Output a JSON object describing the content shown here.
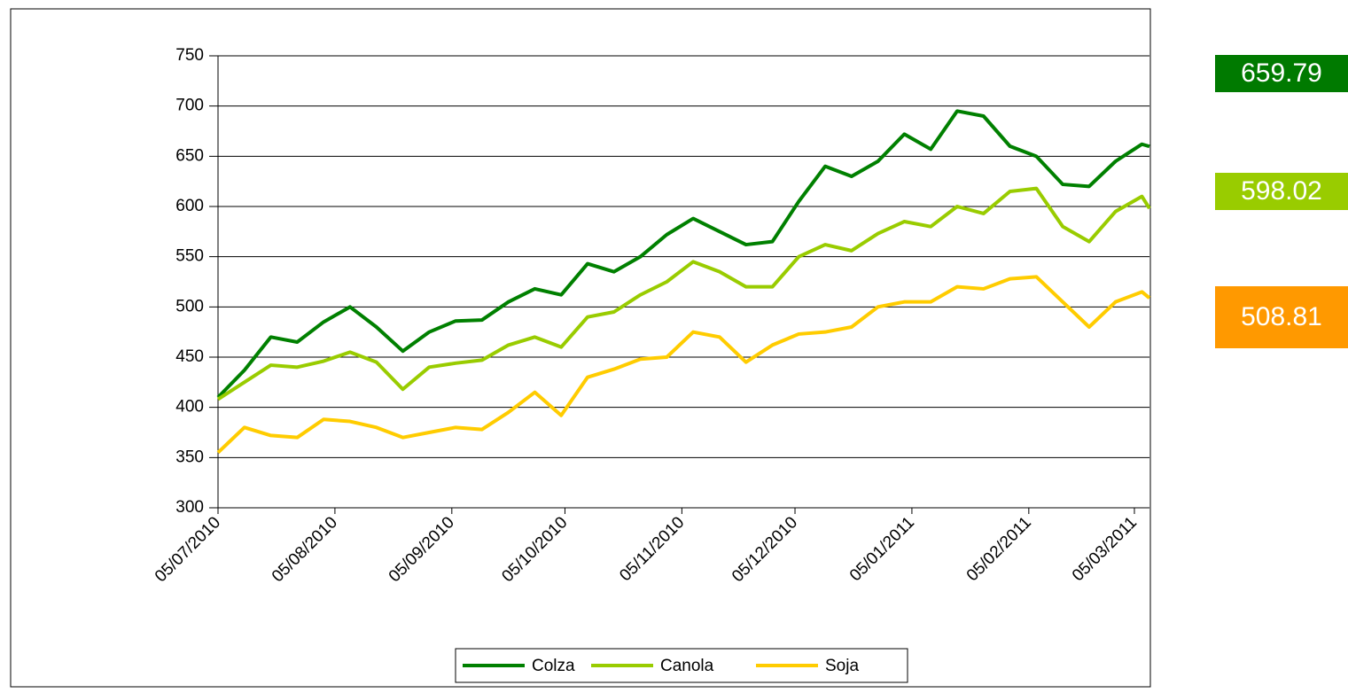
{
  "chart_data": {
    "type": "line",
    "x": [
      "05/07/2010",
      "12/07/2010",
      "19/07/2010",
      "26/07/2010",
      "02/08/2010",
      "09/08/2010",
      "16/08/2010",
      "23/08/2010",
      "30/08/2010",
      "06/09/2010",
      "13/09/2010",
      "20/09/2010",
      "27/09/2010",
      "04/10/2010",
      "11/10/2010",
      "18/10/2010",
      "25/10/2010",
      "01/11/2010",
      "08/11/2010",
      "15/11/2010",
      "22/11/2010",
      "29/11/2010",
      "06/12/2010",
      "13/12/2010",
      "20/12/2010",
      "27/12/2010",
      "03/01/2011",
      "10/01/2011",
      "17/01/2011",
      "24/01/2011",
      "31/01/2011",
      "07/02/2011",
      "14/02/2011",
      "21/02/2011",
      "28/02/2011",
      "07/03/2011",
      "09/03/2011"
    ],
    "series": [
      {
        "name": "Colza",
        "color": "#008000",
        "label_color": "#007a00",
        "values": [
          410,
          437,
          470,
          465,
          485,
          500,
          480,
          456,
          475,
          486,
          487,
          505,
          518,
          512,
          543,
          535,
          550,
          572,
          588,
          575,
          562,
          565,
          605,
          640,
          630,
          645,
          672,
          657,
          695,
          690,
          660,
          650,
          622,
          620,
          645,
          662,
          659.79
        ]
      },
      {
        "name": "Canola",
        "color": "#99cc00",
        "label_color": "#99cc00",
        "values": [
          408,
          425,
          442,
          440,
          446,
          455,
          445,
          418,
          440,
          444,
          447,
          462,
          470,
          460,
          490,
          495,
          512,
          525,
          545,
          535,
          520,
          520,
          550,
          562,
          556,
          573,
          585,
          580,
          600,
          593,
          615,
          618,
          580,
          565,
          595,
          610,
          598.02
        ]
      },
      {
        "name": "Soja",
        "color": "#ffcc00",
        "label_color": "#ff9900",
        "values": [
          355,
          380,
          372,
          370,
          388,
          386,
          380,
          370,
          375,
          380,
          378,
          395,
          415,
          392,
          430,
          438,
          448,
          450,
          475,
          470,
          445,
          462,
          473,
          475,
          480,
          500,
          505,
          505,
          520,
          518,
          528,
          530,
          505,
          480,
          505,
          515,
          508.81
        ]
      }
    ],
    "xlim": [
      "05/07/2010",
      "09/03/2011"
    ],
    "xticks": [
      "05/07/2010",
      "05/08/2010",
      "05/09/2010",
      "05/10/2010",
      "05/11/2010",
      "05/12/2010",
      "05/01/2011",
      "05/02/2011",
      "05/03/2011"
    ],
    "ylim": [
      300,
      750
    ],
    "yticks": [
      300,
      350,
      400,
      450,
      500,
      550,
      600,
      650,
      700,
      750
    ],
    "grid": true,
    "legend": "bottom"
  }
}
